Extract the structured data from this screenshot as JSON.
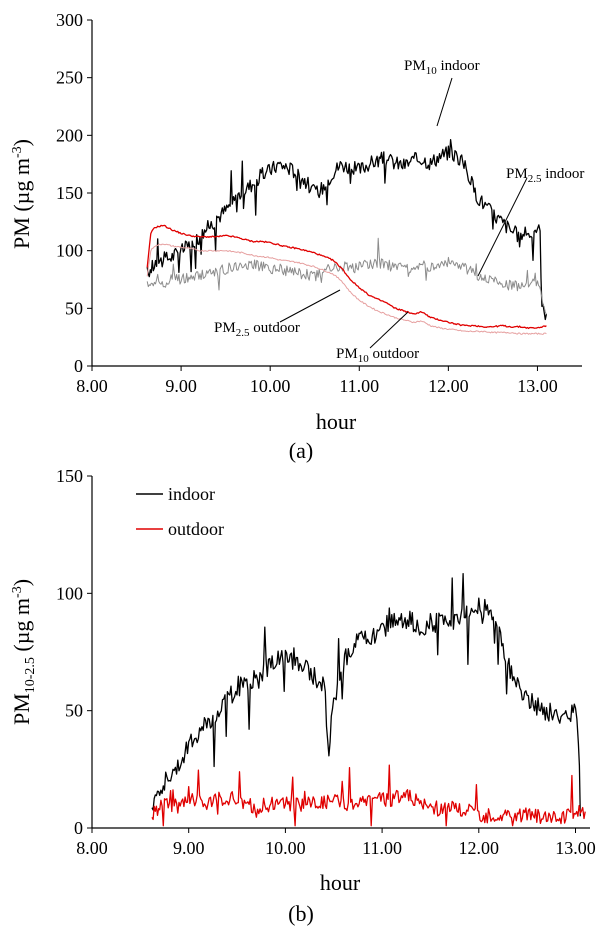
{
  "chart_data": [
    {
      "type": "line",
      "panel_label": "(a)",
      "xlabel": "hour",
      "ylabel_base": "PM",
      "ylabel_unit_prefix": "(µg m",
      "ylabel_unit_sup": "-3",
      "ylabel_unit_suffix": ")",
      "xlim": [
        8.0,
        13.5
      ],
      "ylim": [
        0,
        300
      ],
      "xticks": [
        "8.00",
        "9.00",
        "10.00",
        "11.00",
        "12.00",
        "13.00"
      ],
      "yticks": [
        "0",
        "50",
        "100",
        "150",
        "200",
        "250",
        "300"
      ],
      "grid": false,
      "series": [
        {
          "id": "pm10_indoor",
          "color": "#000000",
          "x": [
            8.62,
            8.7,
            8.8,
            8.9,
            9.0,
            9.1,
            9.2,
            9.3,
            9.4,
            9.5,
            9.6,
            9.7,
            9.8,
            9.9,
            10.0,
            10.1,
            10.2,
            10.3,
            10.4,
            10.5,
            10.6,
            10.7,
            10.8,
            10.9,
            11.0,
            11.1,
            11.2,
            11.3,
            11.4,
            11.5,
            11.6,
            11.7,
            11.8,
            11.9,
            12.0,
            12.1,
            12.2,
            12.3,
            12.4,
            12.5,
            12.6,
            12.7,
            12.8,
            12.9,
            13.0,
            13.03,
            13.05,
            13.1
          ],
          "y": [
            80,
            88,
            92,
            95,
            100,
            105,
            112,
            120,
            128,
            135,
            145,
            152,
            158,
            165,
            170,
            175,
            172,
            168,
            160,
            150,
            155,
            168,
            175,
            172,
            170,
            175,
            178,
            180,
            176,
            174,
            178,
            180,
            176,
            182,
            185,
            182,
            172,
            150,
            140,
            132,
            125,
            118,
            112,
            115,
            120,
            115,
            50,
            45
          ]
        },
        {
          "id": "pm25_indoor",
          "color": "#8c8c8c",
          "x": [
            8.62,
            8.7,
            8.8,
            8.9,
            9.0,
            9.1,
            9.2,
            9.3,
            9.4,
            9.5,
            9.6,
            9.7,
            9.8,
            9.9,
            10.0,
            10.1,
            10.2,
            10.3,
            10.4,
            10.5,
            10.6,
            10.7,
            10.8,
            10.9,
            11.0,
            11.1,
            11.2,
            11.3,
            11.4,
            11.5,
            11.6,
            11.7,
            11.8,
            11.9,
            12.0,
            12.1,
            12.2,
            12.3,
            12.4,
            12.5,
            12.6,
            12.7,
            12.8,
            12.9,
            13.0,
            13.05,
            13.1
          ],
          "y": [
            70,
            72,
            72,
            75,
            75,
            76,
            78,
            80,
            82,
            84,
            86,
            88,
            88,
            86,
            85,
            84,
            82,
            80,
            80,
            78,
            82,
            85,
            86,
            85,
            86,
            88,
            90,
            88,
            86,
            85,
            86,
            88,
            86,
            88,
            90,
            88,
            85,
            80,
            76,
            74,
            72,
            70,
            70,
            70,
            72,
            60,
            45
          ]
        },
        {
          "id": "pm25_outdoor",
          "color": "#e00000",
          "x": [
            8.62,
            8.66,
            8.7,
            8.8,
            8.9,
            9.0,
            9.1,
            9.2,
            9.3,
            9.4,
            9.5,
            9.6,
            9.7,
            9.8,
            9.9,
            10.0,
            10.1,
            10.2,
            10.3,
            10.4,
            10.5,
            10.6,
            10.7,
            10.8,
            10.9,
            11.0,
            11.1,
            11.2,
            11.3,
            11.4,
            11.5,
            11.6,
            11.7,
            11.8,
            11.9,
            12.0,
            12.1,
            12.2,
            12.3,
            12.4,
            12.5,
            12.6,
            12.7,
            12.8,
            12.9,
            13.0,
            13.1
          ],
          "y": [
            85,
            115,
            120,
            122,
            118,
            115,
            113,
            112,
            112,
            112,
            113,
            112,
            110,
            108,
            108,
            107,
            105,
            103,
            102,
            100,
            98,
            95,
            92,
            85,
            75,
            68,
            62,
            58,
            55,
            50,
            48,
            45,
            47,
            42,
            40,
            38,
            36,
            35,
            35,
            34,
            34,
            35,
            34,
            34,
            33,
            33,
            35
          ]
        },
        {
          "id": "pm10_outdoor",
          "color": "#e6a0a0",
          "x": [
            8.62,
            8.66,
            8.7,
            8.8,
            8.9,
            9.0,
            9.1,
            9.2,
            9.3,
            9.4,
            9.5,
            9.6,
            9.7,
            9.8,
            9.9,
            10.0,
            10.1,
            10.2,
            10.3,
            10.4,
            10.5,
            10.6,
            10.7,
            10.8,
            10.9,
            11.0,
            11.1,
            11.2,
            11.3,
            11.4,
            11.5,
            11.6,
            11.7,
            11.8,
            11.9,
            12.0,
            12.1,
            12.2,
            12.3,
            12.4,
            12.5,
            12.6,
            12.7,
            12.8,
            12.9,
            13.0,
            13.1
          ],
          "y": [
            78,
            100,
            104,
            106,
            104,
            103,
            102,
            100,
            100,
            100,
            100,
            99,
            98,
            96,
            95,
            94,
            92,
            91,
            90,
            88,
            86,
            83,
            80,
            74,
            64,
            57,
            52,
            48,
            45,
            42,
            40,
            38,
            39,
            35,
            33,
            32,
            31,
            30,
            30,
            30,
            29,
            29,
            29,
            28,
            28,
            28,
            28
          ]
        }
      ],
      "annotations": [
        {
          "base": "PM",
          "sub": "10",
          "rest": " indoor"
        },
        {
          "base": "PM",
          "sub": "2.5",
          "rest": " indoor"
        },
        {
          "base": "PM",
          "sub": "2.5",
          "rest": " outdoor"
        },
        {
          "base": "PM",
          "sub": "10",
          "rest": " outdoor"
        }
      ]
    },
    {
      "type": "line",
      "panel_label": "(b)",
      "xlabel": "hour",
      "ylabel_base": "PM",
      "ylabel_sub": "10-2.5",
      "ylabel_unit_prefix": " (µg m",
      "ylabel_unit_sup": "-3",
      "ylabel_unit_suffix": ")",
      "xlim": [
        8.0,
        13.15
      ],
      "ylim": [
        0,
        150
      ],
      "xticks": [
        "8.00",
        "9.00",
        "10.00",
        "11.00",
        "12.00",
        "13.00"
      ],
      "yticks": [
        "0",
        "50",
        "100",
        "150"
      ],
      "grid": false,
      "legend_position": "top-left",
      "series": [
        {
          "name": "indoor",
          "color": "#000000",
          "x": [
            8.62,
            8.7,
            8.8,
            8.9,
            9.0,
            9.1,
            9.2,
            9.3,
            9.4,
            9.5,
            9.6,
            9.7,
            9.8,
            9.9,
            10.0,
            10.1,
            10.2,
            10.3,
            10.4,
            10.45,
            10.5,
            10.6,
            10.7,
            10.8,
            10.9,
            11.0,
            11.1,
            11.2,
            11.3,
            11.4,
            11.5,
            11.6,
            11.7,
            11.8,
            11.9,
            12.0,
            12.1,
            12.2,
            12.3,
            12.4,
            12.5,
            12.6,
            12.7,
            12.8,
            12.9,
            13.0,
            13.03,
            13.05
          ],
          "y": [
            10,
            18,
            22,
            28,
            35,
            40,
            45,
            50,
            55,
            60,
            62,
            65,
            68,
            72,
            75,
            73,
            68,
            65,
            60,
            35,
            55,
            70,
            78,
            82,
            80,
            85,
            88,
            90,
            88,
            85,
            87,
            88,
            86,
            90,
            92,
            95,
            93,
            85,
            70,
            60,
            55,
            52,
            50,
            48,
            48,
            50,
            40,
            5
          ]
        },
        {
          "name": "outdoor",
          "color": "#e00000",
          "x": [
            8.62,
            8.7,
            8.8,
            8.9,
            9.0,
            9.1,
            9.2,
            9.3,
            9.4,
            9.5,
            9.6,
            9.7,
            9.8,
            9.9,
            10.0,
            10.1,
            10.2,
            10.3,
            10.4,
            10.5,
            10.6,
            10.7,
            10.8,
            10.9,
            11.0,
            11.1,
            11.2,
            11.3,
            11.4,
            11.5,
            11.6,
            11.7,
            11.8,
            11.9,
            12.0,
            12.1,
            12.2,
            12.3,
            12.4,
            12.5,
            12.6,
            12.7,
            12.8,
            12.9,
            13.0,
            13.1
          ],
          "y": [
            6,
            9,
            10,
            9,
            12,
            11,
            10,
            12,
            11,
            10,
            10,
            9,
            10,
            10,
            11,
            10,
            10,
            11,
            11,
            12,
            11,
            10,
            11,
            12,
            12,
            11,
            15,
            13,
            10,
            9,
            8,
            9,
            8,
            7,
            6,
            5,
            5,
            6,
            5,
            6,
            5,
            5,
            5,
            5,
            6,
            7
          ]
        }
      ]
    }
  ]
}
